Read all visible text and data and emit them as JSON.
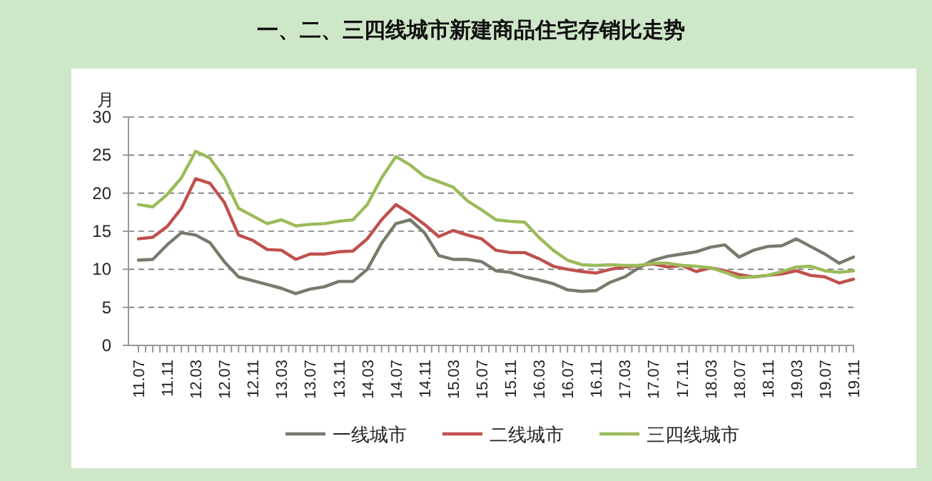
{
  "chart_data": {
    "type": "line",
    "title": "一、二、三四线城市新建商品住宅存销比走势",
    "ylabel": "月",
    "categories": [
      "11.07",
      null,
      "11.11",
      null,
      "12.03",
      null,
      "12.07",
      null,
      "12.11",
      null,
      "13.03",
      null,
      "13.07",
      null,
      "13.11",
      null,
      "14.03",
      null,
      "14.07",
      null,
      "14.11",
      null,
      "15.03",
      null,
      "15.07",
      null,
      "15.11",
      null,
      "16.03",
      null,
      "16.07",
      null,
      "16.11",
      null,
      "17.03",
      null,
      "17.07",
      null,
      "17.11",
      null,
      "18.03",
      null,
      "18.07",
      null,
      "18.11",
      null,
      "19.03",
      null,
      "19.07",
      null,
      "19.11"
    ],
    "series": [
      {
        "name": "一线城市",
        "color": "#767b6c",
        "values": [
          11.2,
          11.3,
          13.2,
          14.8,
          14.5,
          13.5,
          11.0,
          9.0,
          8.5,
          8.0,
          7.5,
          6.8,
          7.4,
          7.7,
          8.4,
          8.4,
          10.0,
          13.4,
          16.0,
          16.5,
          14.8,
          11.8,
          11.3,
          11.3,
          11.0,
          9.8,
          9.6,
          9.0,
          8.6,
          8.1,
          7.3,
          7.1,
          7.2,
          8.3,
          9.0,
          10.2,
          11.2,
          11.7,
          12.0,
          12.3,
          12.9,
          13.2,
          11.6,
          12.5,
          13.0,
          13.1,
          14.0,
          13.0,
          12.0,
          10.8,
          11.6
        ]
      },
      {
        "name": "二线城市",
        "color": "#c0504d",
        "values": [
          14.0,
          14.2,
          15.6,
          18.0,
          21.9,
          21.3,
          18.8,
          14.5,
          13.8,
          12.6,
          12.5,
          11.3,
          12.0,
          12.0,
          12.3,
          12.4,
          14.0,
          16.5,
          18.5,
          17.3,
          15.9,
          14.3,
          15.1,
          14.5,
          14.0,
          12.5,
          12.2,
          12.2,
          11.4,
          10.4,
          10.0,
          9.7,
          9.5,
          10.0,
          10.3,
          10.5,
          10.7,
          10.3,
          10.5,
          9.7,
          10.2,
          9.8,
          9.3,
          9.0,
          9.2,
          9.4,
          9.8,
          9.2,
          9.0,
          8.2,
          8.7
        ]
      },
      {
        "name": "三四线城市",
        "color": "#9bbb59",
        "values": [
          18.5,
          18.2,
          19.8,
          22.0,
          25.5,
          24.6,
          22.0,
          18.0,
          17.0,
          16.0,
          16.5,
          15.7,
          15.9,
          16.0,
          16.3,
          16.5,
          18.5,
          22.0,
          24.8,
          23.7,
          22.2,
          21.5,
          20.8,
          19.0,
          17.8,
          16.5,
          16.3,
          16.2,
          14.2,
          12.5,
          11.2,
          10.6,
          10.5,
          10.6,
          10.5,
          10.5,
          10.8,
          10.8,
          10.5,
          10.4,
          10.2,
          9.6,
          8.9,
          9.0,
          9.2,
          9.7,
          10.3,
          10.4,
          9.8,
          9.6,
          9.8
        ]
      }
    ],
    "ylim": [
      0,
      30
    ],
    "yticks": [
      0,
      5,
      10,
      15,
      20,
      25,
      30
    ],
    "grid": "y",
    "legend": "bottom"
  }
}
